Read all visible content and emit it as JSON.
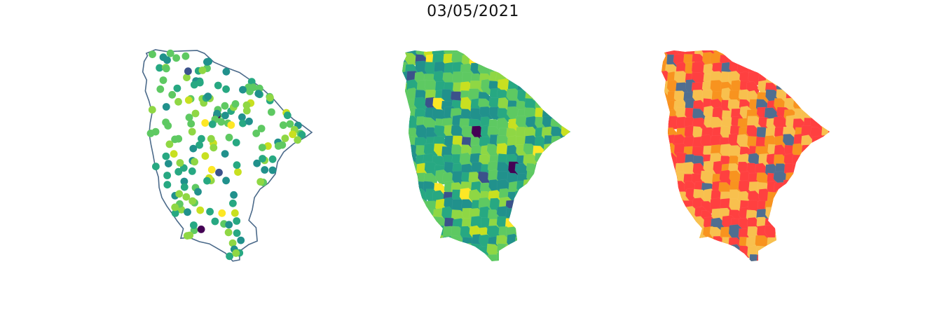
{
  "figure": {
    "title": "03/05/2021"
  },
  "panels": [
    {
      "kind": "station-points-over-outline",
      "outline_color": "#4b6a8a",
      "marker": "circle"
    },
    {
      "kind": "municipality-choropleth",
      "palette": "viridis"
    },
    {
      "kind": "municipality-category-map",
      "palette": [
        "#ff4040",
        "#f8c04e",
        "#f8931f",
        "#506e90"
      ]
    }
  ],
  "colors": {
    "viridis": [
      "#440154",
      "#3b528b",
      "#21918c",
      "#27a882",
      "#5ec962",
      "#8fd744",
      "#c8e020",
      "#fde725"
    ],
    "categories": [
      "#ff4040",
      "#f8c04e",
      "#f8931f",
      "#506e90"
    ]
  }
}
